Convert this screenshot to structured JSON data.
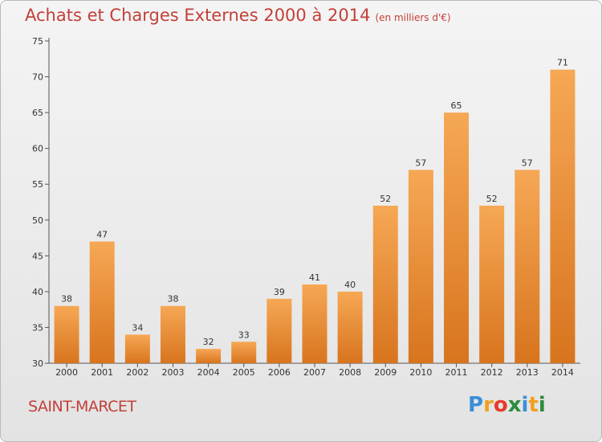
{
  "title": "Achats et Charges Externes 2000 à 2014",
  "subtitle": "(en milliers d'€)",
  "town": "SAINT-MARCET",
  "logo": {
    "letters": [
      "P",
      "r",
      "o",
      "x",
      "i",
      "t",
      "i"
    ],
    "colors": [
      "#3a8fd8",
      "#f0a020",
      "#e83a2a",
      "#2c8c3c",
      "#3a8fd8",
      "#f0a020",
      "#2c8c3c"
    ]
  },
  "colors": {
    "bar_top": "#f6a855",
    "bar_bottom": "#d8741e",
    "title": "#c2403a"
  },
  "chart_data": {
    "type": "bar",
    "title": "Achats et Charges Externes 2000 à 2014",
    "xlabel": "",
    "ylabel": "",
    "categories": [
      "2000",
      "2001",
      "2002",
      "2003",
      "2004",
      "2005",
      "2006",
      "2007",
      "2008",
      "2009",
      "2010",
      "2011",
      "2012",
      "2013",
      "2014"
    ],
    "values": [
      38,
      47,
      34,
      38,
      32,
      33,
      39,
      41,
      40,
      52,
      57,
      65,
      52,
      57,
      71
    ],
    "ylim": [
      30,
      75
    ],
    "yticks": [
      30,
      35,
      40,
      45,
      50,
      55,
      60,
      65,
      70,
      75
    ],
    "grid": false
  }
}
